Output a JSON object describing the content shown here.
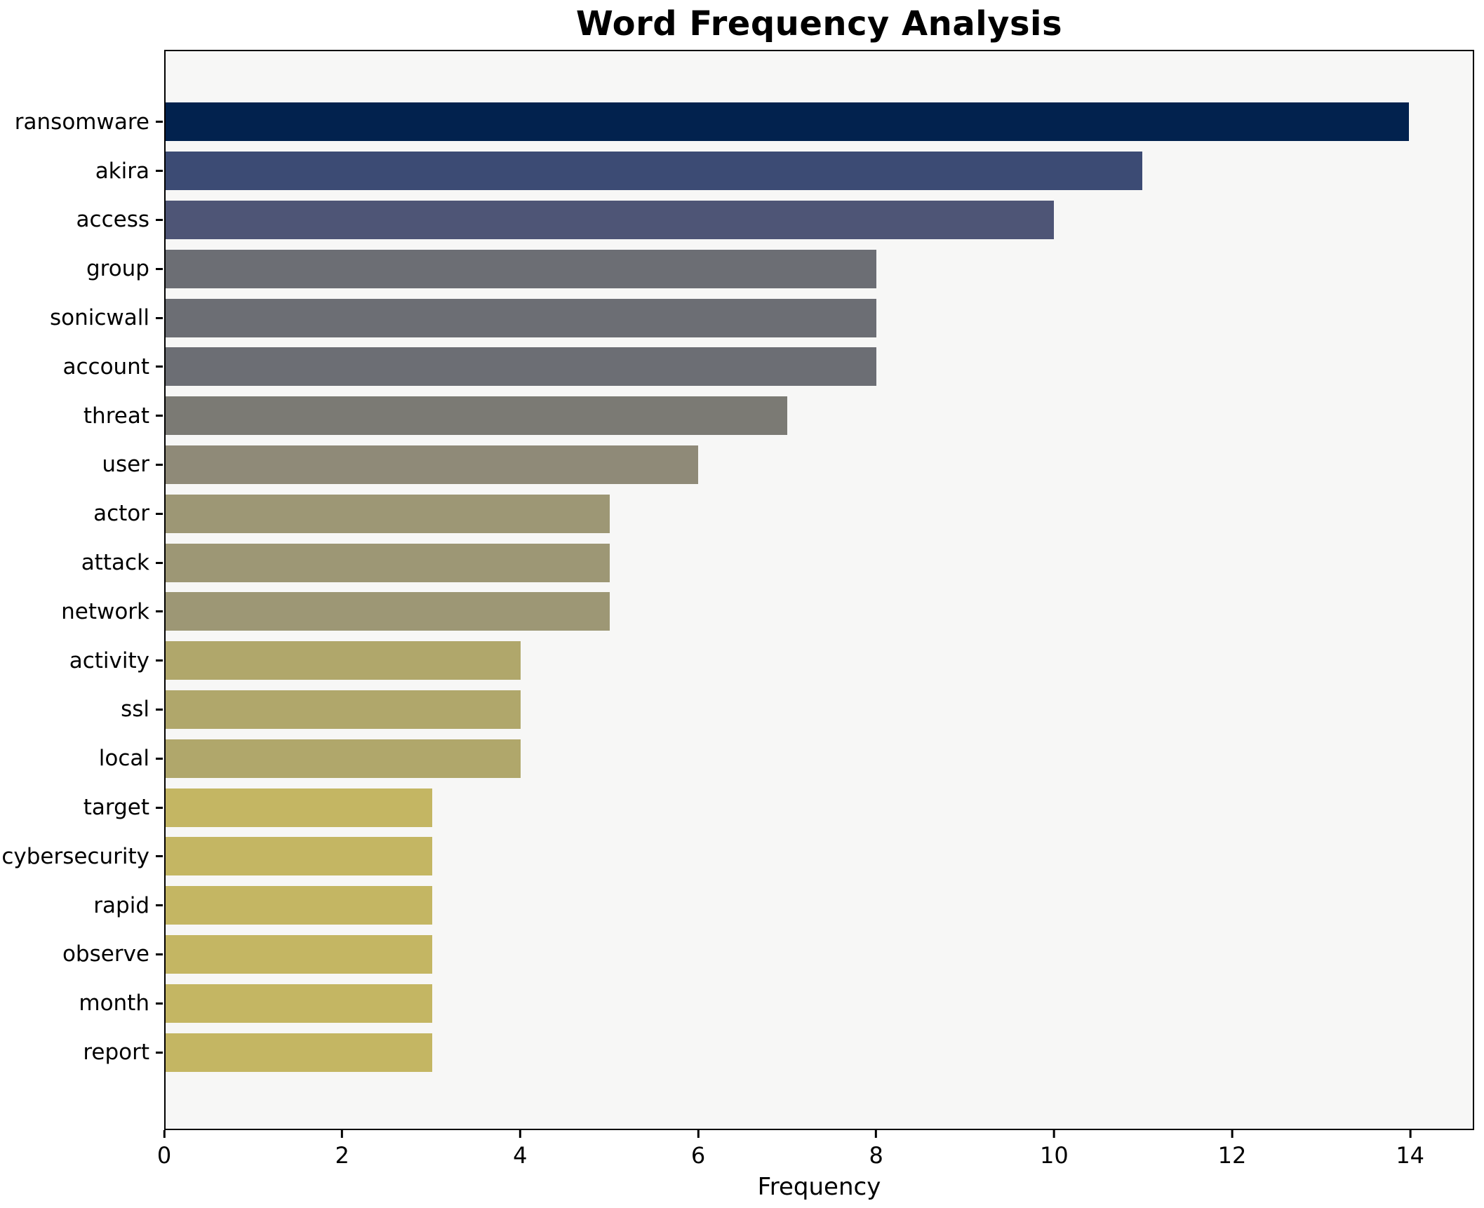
{
  "chart_data": {
    "type": "bar",
    "orientation": "horizontal",
    "title": "Word Frequency Analysis",
    "xlabel": "Frequency",
    "ylabel": "",
    "categories": [
      "ransomware",
      "akira",
      "access",
      "group",
      "sonicwall",
      "account",
      "threat",
      "user",
      "actor",
      "attack",
      "network",
      "activity",
      "ssl",
      "local",
      "target",
      "cybersecurity",
      "rapid",
      "observe",
      "month",
      "report"
    ],
    "values": [
      14,
      11,
      10,
      8,
      8,
      8,
      7,
      6,
      5,
      5,
      5,
      4,
      4,
      4,
      3,
      3,
      3,
      3,
      3,
      3
    ],
    "bar_colors": [
      "#02224e",
      "#3c4b74",
      "#4e5576",
      "#6c6e74",
      "#6c6e74",
      "#6c6e74",
      "#7b7a74",
      "#8f8a78",
      "#9d9775",
      "#9d9775",
      "#9d9775",
      "#b0a76b",
      "#b0a76b",
      "#b0a76b",
      "#c4b663",
      "#c4b663",
      "#c4b663",
      "#c4b663",
      "#c4b663",
      "#c4b663"
    ],
    "xlim": [
      0,
      14.72
    ],
    "xticks": [
      0,
      2,
      4,
      6,
      8,
      10,
      12,
      14
    ],
    "grid": false,
    "legend_position": "none",
    "plot_background": "#f7f7f6",
    "figure_background": "#ffffff",
    "spine_color": "#000000"
  }
}
